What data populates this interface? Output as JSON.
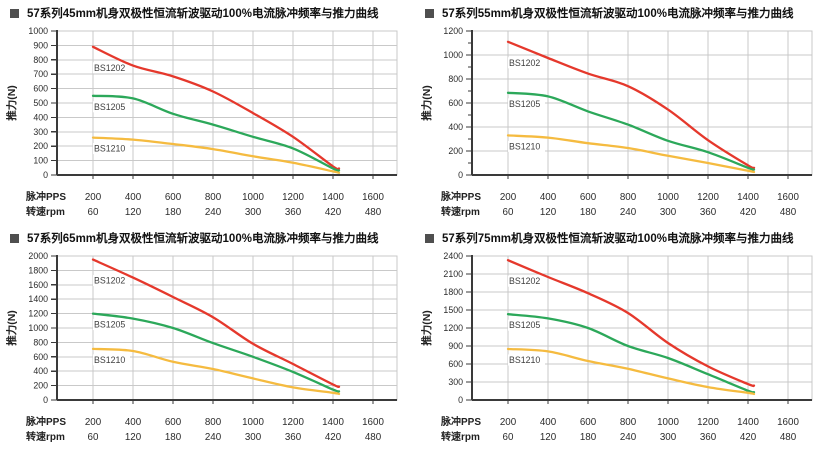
{
  "page": {
    "background": "#ffffff"
  },
  "colors": {
    "red": "#e5382c",
    "green": "#2ca85a",
    "yellow": "#f5bb40",
    "grid": "#c9c9c9",
    "axis": "#3a3a3a",
    "text": "#2b2b2b",
    "bullet": "#4f4f4f",
    "label_text": "#3f3f3f"
  },
  "x_axis": {
    "row1_label": "脉冲PPS",
    "row1_values": [
      200,
      400,
      600,
      800,
      1000,
      1200,
      1400,
      1600
    ],
    "row2_label": "转速rpm",
    "row2_values": [
      60,
      120,
      180,
      240,
      300,
      360,
      420,
      480
    ]
  },
  "chart_data": [
    {
      "type": "line",
      "title": "57系列45mm机身双极性恒流斩波驱动100%电流脉冲频率与推力曲线",
      "ylabel": "推力(N)",
      "ylim": [
        0,
        1000
      ],
      "ytick_step": 100,
      "minor_tick_step": null,
      "grid": "on",
      "legend": "inline-curve-labels",
      "x": [
        200,
        400,
        600,
        800,
        1000,
        1200,
        1400,
        1430
      ],
      "series": [
        {
          "name": "BS1202",
          "color": "red",
          "values": [
            890,
            760,
            685,
            580,
            430,
            265,
            60,
            45
          ]
        },
        {
          "name": "BS1205",
          "color": "green",
          "values": [
            550,
            532,
            425,
            350,
            265,
            185,
            45,
            32
          ]
        },
        {
          "name": "BS1210",
          "color": "yellow",
          "values": [
            260,
            246,
            215,
            180,
            130,
            85,
            25,
            15
          ]
        }
      ]
    },
    {
      "type": "line",
      "title": "57系列55mm机身双极性恒流斩波驱动100%电流脉冲频率与推力曲线",
      "ylabel": "推力(N)",
      "ylim": [
        0,
        1200
      ],
      "ytick_step": 200,
      "minor_tick_step": 100,
      "grid": "on",
      "legend": "inline-curve-labels",
      "x": [
        200,
        400,
        600,
        800,
        1000,
        1200,
        1400,
        1430
      ],
      "series": [
        {
          "name": "BS1202",
          "color": "red",
          "values": [
            1110,
            975,
            845,
            740,
            545,
            290,
            80,
            60
          ]
        },
        {
          "name": "BS1205",
          "color": "green",
          "values": [
            685,
            655,
            530,
            420,
            285,
            190,
            60,
            45
          ]
        },
        {
          "name": "BS1210",
          "color": "yellow",
          "values": [
            330,
            312,
            265,
            225,
            160,
            100,
            35,
            25
          ]
        }
      ]
    },
    {
      "type": "line",
      "title": "57系列65mm机身双极性恒流斩波驱动100%电流脉冲频率与推力曲线",
      "ylabel": "推力(N)",
      "ylim": [
        0,
        2000
      ],
      "ytick_step": 200,
      "minor_tick_step": null,
      "grid": "on",
      "legend": "inline-curve-labels",
      "x": [
        200,
        400,
        600,
        800,
        1000,
        1200,
        1400,
        1430
      ],
      "series": [
        {
          "name": "BS1202",
          "color": "red",
          "values": [
            1950,
            1700,
            1430,
            1150,
            780,
            500,
            215,
            185
          ]
        },
        {
          "name": "BS1205",
          "color": "green",
          "values": [
            1200,
            1130,
            1000,
            790,
            600,
            390,
            145,
            120
          ]
        },
        {
          "name": "BS1210",
          "color": "yellow",
          "values": [
            710,
            680,
            530,
            430,
            300,
            175,
            100,
            85
          ]
        }
      ]
    },
    {
      "type": "line",
      "title": "57系列75mm机身双极性恒流斩波驱动100%电流脉冲频率与推力曲线",
      "ylabel": "推力(N)",
      "ylim": [
        0,
        2400
      ],
      "ytick_step": 300,
      "minor_tick_step": null,
      "grid": "on",
      "legend": "inline-curve-labels",
      "x": [
        200,
        400,
        600,
        800,
        1000,
        1200,
        1400,
        1430
      ],
      "series": [
        {
          "name": "BS1202",
          "color": "red",
          "values": [
            2330,
            2050,
            1780,
            1450,
            950,
            560,
            265,
            240
          ]
        },
        {
          "name": "BS1205",
          "color": "green",
          "values": [
            1430,
            1360,
            1200,
            900,
            700,
            430,
            155,
            130
          ]
        },
        {
          "name": "BS1210",
          "color": "yellow",
          "values": [
            850,
            810,
            650,
            520,
            360,
            215,
            120,
            100
          ]
        }
      ]
    }
  ]
}
